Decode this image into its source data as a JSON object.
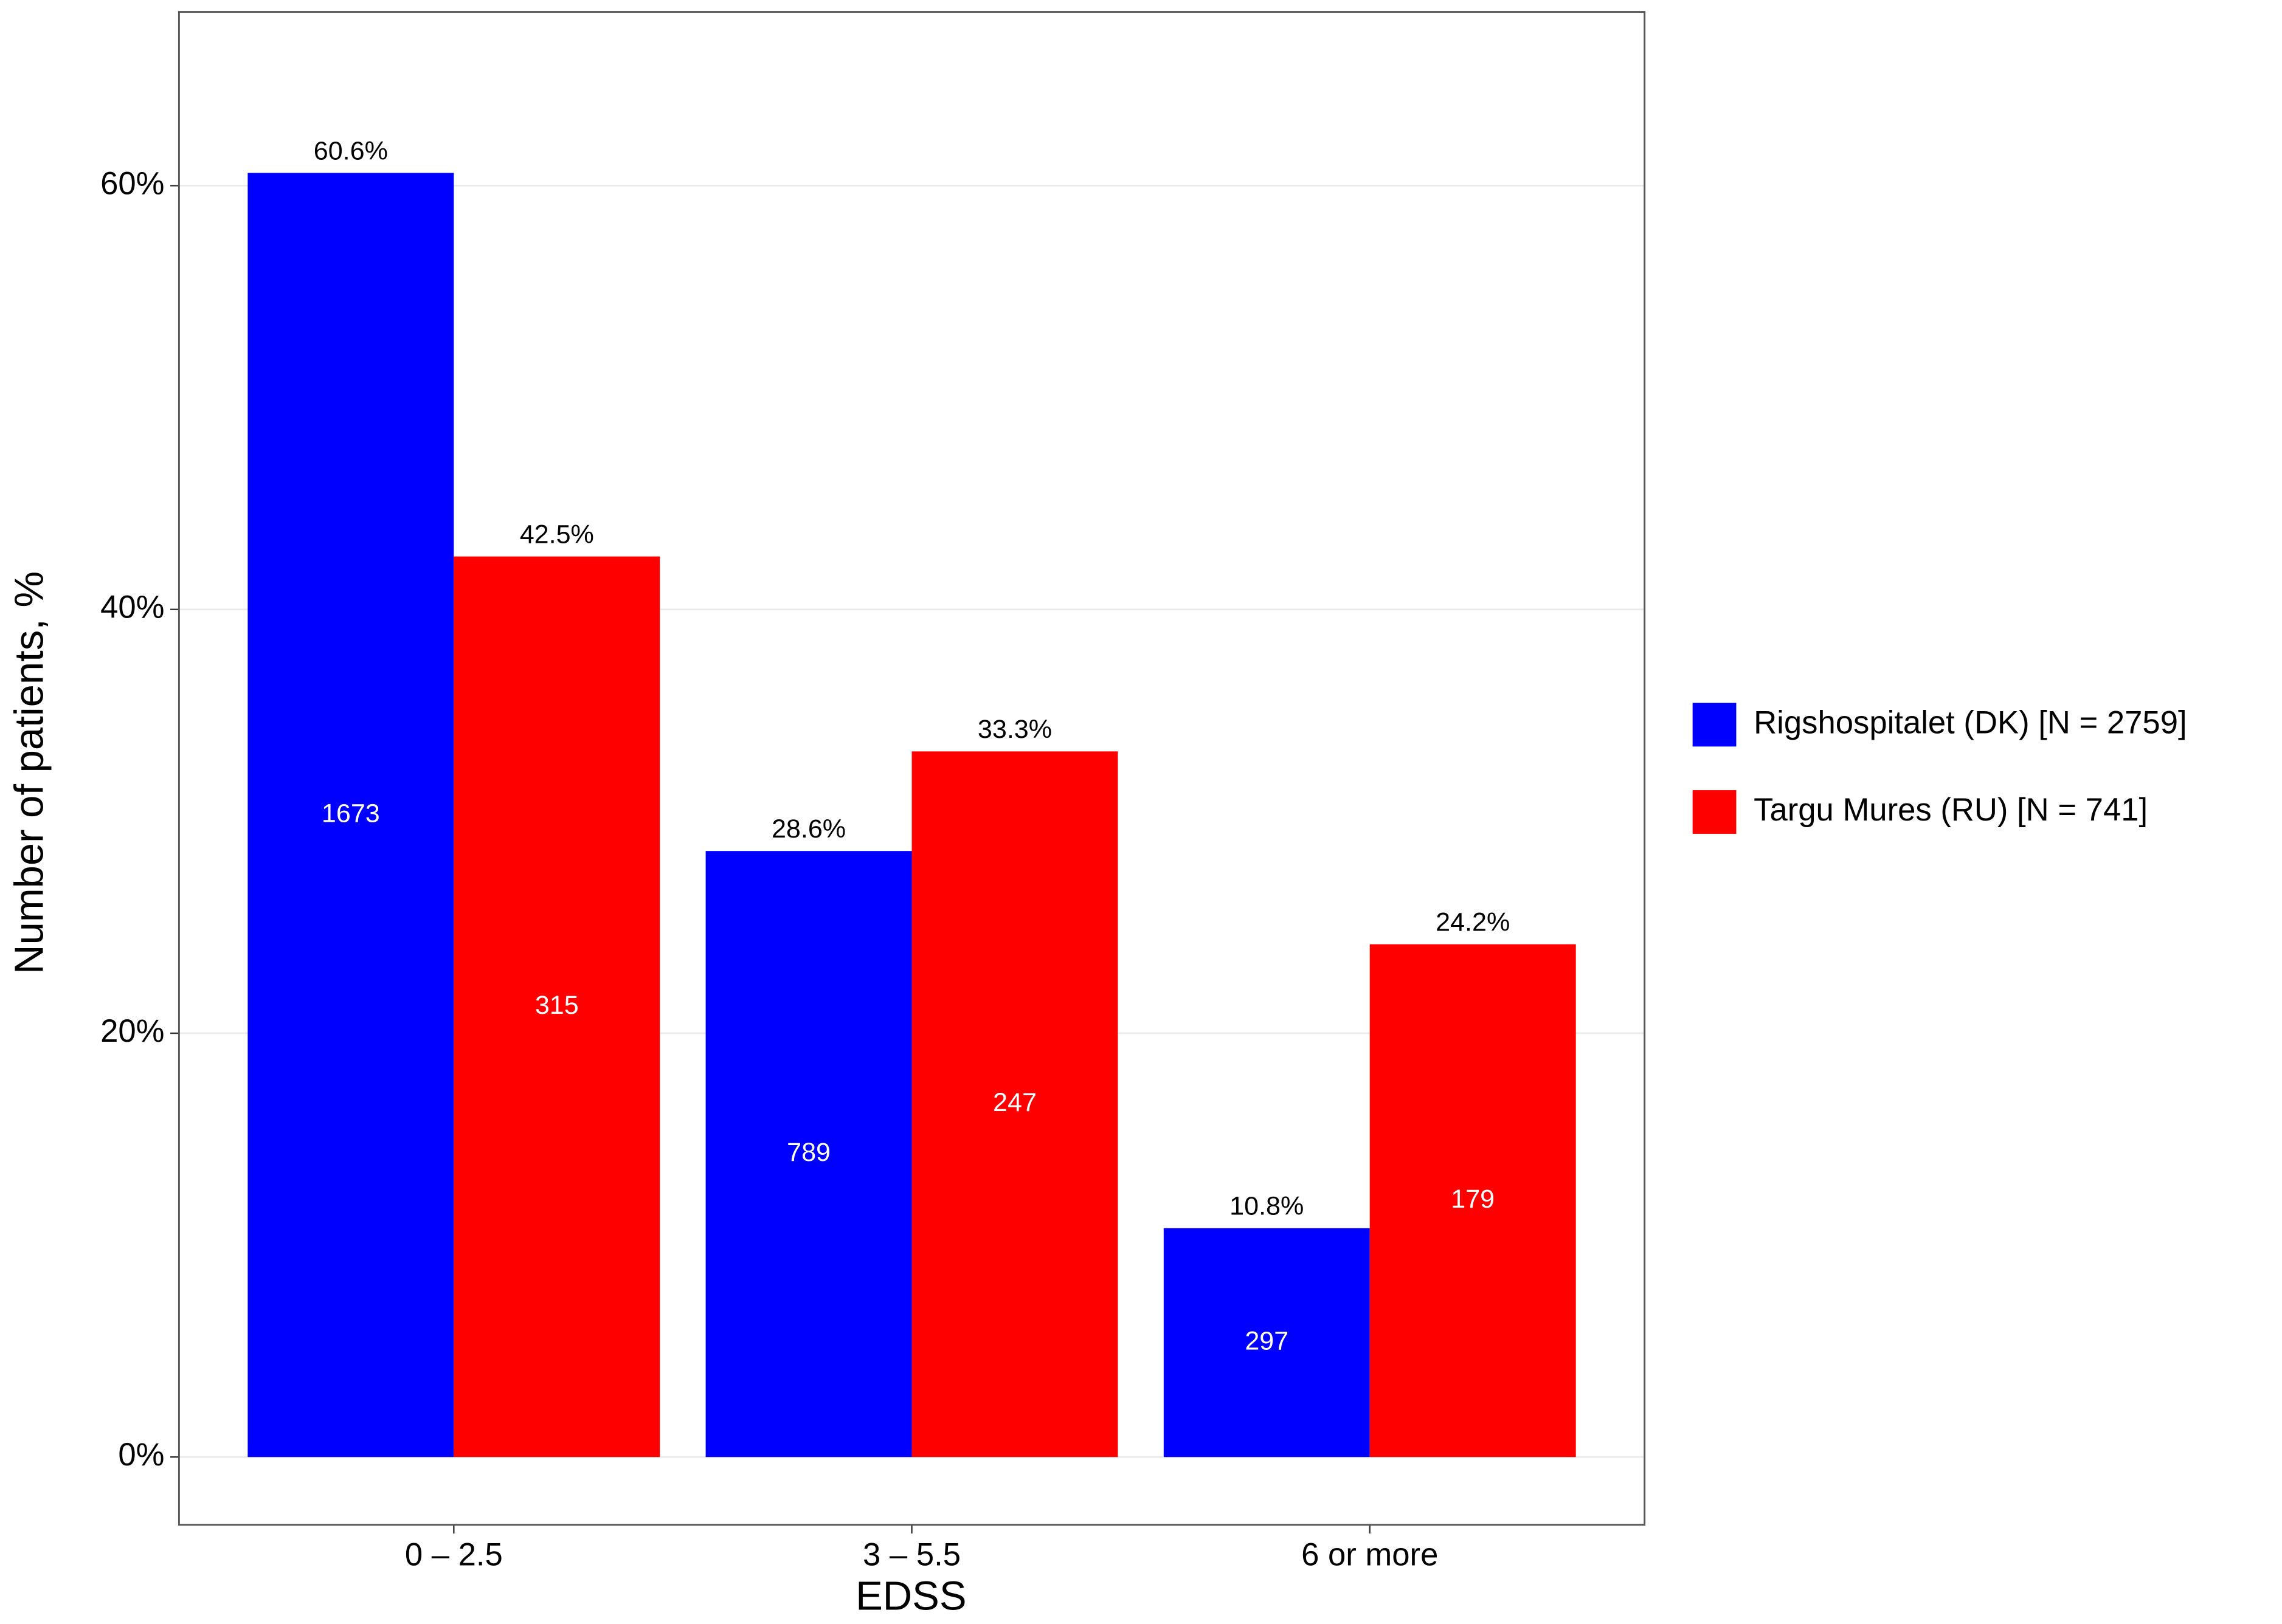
{
  "chart_data": {
    "type": "bar",
    "x_label": "EDSS",
    "y_label": "Number of patients, %",
    "categories": [
      "0 – 2.5",
      "3 – 5.5",
      "6 or more"
    ],
    "series": [
      {
        "name": "Rigshospitalet (DK) [N = 2759]",
        "color": "#0000ff",
        "values": [
          60.6,
          28.6,
          10.8
        ],
        "value_labels": [
          "60.6%",
          "28.6%",
          "10.8%"
        ],
        "counts": [
          1673,
          789,
          297
        ]
      },
      {
        "name": "Targu Mures (RU) [N = 741]",
        "color": "#ff0000",
        "values": [
          42.5,
          33.3,
          24.2
        ],
        "value_labels": [
          "42.5%",
          "33.3%",
          "24.2%"
        ],
        "counts": [
          315,
          247,
          179
        ]
      }
    ],
    "ylim": [
      -3.2,
      68.2
    ],
    "yticks": [
      {
        "value": 0,
        "label": "0%"
      },
      {
        "value": 20,
        "label": "20%"
      },
      {
        "value": 40,
        "label": "40%"
      },
      {
        "value": 60,
        "label": "60%"
      }
    ],
    "grid": true,
    "legend": "right"
  }
}
